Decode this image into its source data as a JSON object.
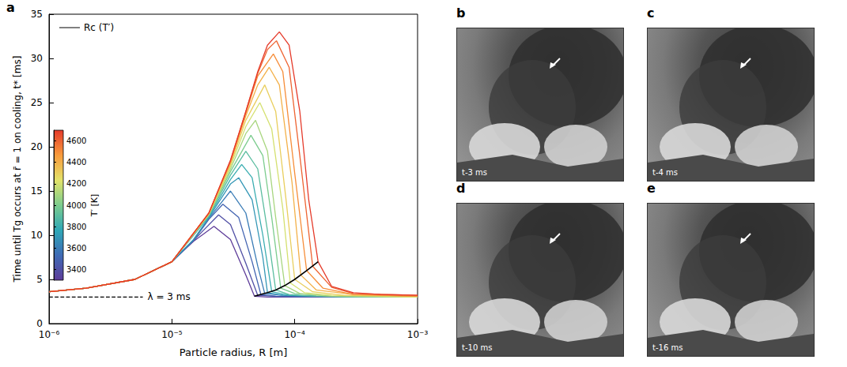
{
  "chart_data": {
    "type": "line",
    "panel": "a",
    "x_label": "Particle radius, R [m]",
    "y_label": "Time until Tg occurs at r̄ = 1 on cooling, t* [ms]",
    "log": "x",
    "xlim": [
      1e-06,
      0.001
    ],
    "xticks": [
      {
        "value": 1e-06,
        "label": "10⁻⁶"
      },
      {
        "value": 1e-05,
        "label": "10⁻⁵"
      },
      {
        "value": 0.0001,
        "label": "10⁻⁴"
      },
      {
        "value": 0.001,
        "label": "10⁻³"
      }
    ],
    "ylim": [
      0,
      35
    ],
    "yticks": [
      0,
      5,
      10,
      15,
      20,
      25,
      30,
      35
    ],
    "grid": false,
    "legend": "upper left",
    "colorbar": {
      "label": "T′ [K]",
      "range": [
        3300,
        4700
      ],
      "ticks": [
        3400,
        3600,
        3800,
        4000,
        4200,
        4400,
        4600
      ],
      "colors": [
        "#5e3c99",
        "#3f6bb5",
        "#2fa8b7",
        "#7ccc8e",
        "#e3e36a",
        "#f99b3c",
        "#e53a2a"
      ]
    },
    "series": [
      {
        "T": 3300,
        "x": [
          1e-06,
          2e-06,
          5e-06,
          1e-05,
          1.5e-05,
          2.2e-05,
          3e-05,
          4e-05,
          4.7e-05,
          6e-05,
          0.0001,
          0.0003,
          0.001
        ],
        "values": [
          3.6,
          4.0,
          5.0,
          7.0,
          9.3,
          11.0,
          9.5,
          5.5,
          3.1,
          3.0,
          3.0,
          3.0,
          3.0
        ]
      },
      {
        "T": 3400,
        "x": [
          1e-06,
          2e-06,
          5e-06,
          1e-05,
          1.5e-05,
          2.4e-05,
          3e-05,
          4e-05,
          5e-05,
          7e-05,
          0.0001,
          0.0003,
          0.001
        ],
        "values": [
          3.6,
          4.0,
          5.0,
          7.0,
          9.4,
          12.3,
          11.2,
          6.8,
          3.2,
          3.1,
          3.0,
          3.0,
          3.0
        ]
      },
      {
        "T": 3500,
        "x": [
          1e-06,
          2e-06,
          5e-06,
          1e-05,
          1.5e-05,
          2e-05,
          2.6e-05,
          3.5e-05,
          4.5e-05,
          5.3e-05,
          7e-05,
          0.0001,
          0.0003,
          0.001
        ],
        "values": [
          3.6,
          4.0,
          5.0,
          7.0,
          9.4,
          11.8,
          13.5,
          12.0,
          7.0,
          3.3,
          3.1,
          3.1,
          3.0,
          3.0
        ]
      },
      {
        "T": 3600,
        "x": [
          1e-06,
          2e-06,
          5e-06,
          1e-05,
          1.5e-05,
          2e-05,
          3e-05,
          4e-05,
          5e-05,
          5.7e-05,
          8e-05,
          0.00015,
          0.001
        ],
        "values": [
          3.6,
          4.0,
          5.0,
          7.0,
          9.5,
          11.9,
          15.0,
          12.5,
          6.5,
          3.4,
          3.2,
          3.1,
          3.0
        ]
      },
      {
        "T": 3700,
        "x": [
          1e-06,
          2e-06,
          5e-06,
          1e-05,
          1.5e-05,
          2e-05,
          3e-05,
          3.5e-05,
          4.5e-05,
          5.5e-05,
          6e-05,
          8e-05,
          0.00015,
          0.001
        ],
        "values": [
          3.6,
          4.0,
          5.0,
          7.0,
          9.5,
          12.0,
          15.8,
          16.5,
          14.0,
          7.5,
          3.5,
          3.2,
          3.1,
          3.0
        ]
      },
      {
        "T": 3800,
        "x": [
          1e-06,
          2e-06,
          5e-06,
          1e-05,
          2e-05,
          3e-05,
          3.7e-05,
          4.5e-05,
          5.5e-05,
          6.5e-05,
          9e-05,
          0.00015,
          0.001
        ],
        "values": [
          3.6,
          4.0,
          5.0,
          7.0,
          12.1,
          16.3,
          18.0,
          16.5,
          10.0,
          3.6,
          3.2,
          3.1,
          3.0
        ]
      },
      {
        "T": 3900,
        "x": [
          1e-06,
          2e-06,
          5e-06,
          1e-05,
          2e-05,
          3e-05,
          4e-05,
          5e-05,
          6e-05,
          7e-05,
          9e-05,
          0.00015,
          0.001
        ],
        "values": [
          3.6,
          4.0,
          5.0,
          7.0,
          12.2,
          16.8,
          19.5,
          17.5,
          10.5,
          3.8,
          3.3,
          3.1,
          3.0
        ]
      },
      {
        "T": 4000,
        "x": [
          1e-06,
          2e-06,
          5e-06,
          1e-05,
          2e-05,
          3e-05,
          4.4e-05,
          5.5e-05,
          6.5e-05,
          7.7e-05,
          0.0001,
          0.0002,
          0.001
        ],
        "values": [
          3.6,
          4.0,
          5.0,
          7.0,
          12.3,
          17.2,
          21.3,
          19.0,
          12.0,
          4.0,
          3.4,
          3.1,
          3.0
        ]
      },
      {
        "T": 4100,
        "x": [
          1e-06,
          2e-06,
          5e-06,
          1e-05,
          2e-05,
          3e-05,
          4e-05,
          4.8e-05,
          6e-05,
          7e-05,
          8.3e-05,
          0.00011,
          0.0002,
          0.001
        ],
        "values": [
          3.6,
          4.0,
          5.0,
          7.0,
          12.3,
          17.5,
          21.5,
          23.0,
          19.5,
          12.0,
          4.3,
          3.4,
          3.1,
          3.0
        ]
      },
      {
        "T": 4200,
        "x": [
          1e-06,
          2e-06,
          5e-06,
          1e-05,
          2e-05,
          3e-05,
          4e-05,
          5.2e-05,
          6.5e-05,
          8e-05,
          9.2e-05,
          0.00012,
          0.0002,
          0.001
        ],
        "values": [
          3.6,
          4.0,
          5.0,
          7.0,
          12.4,
          17.8,
          22.3,
          25.0,
          22.0,
          13.0,
          4.6,
          3.5,
          3.2,
          3.0
        ]
      },
      {
        "T": 4300,
        "x": [
          1e-06,
          2e-06,
          5e-06,
          1e-05,
          2e-05,
          3e-05,
          4e-05,
          5.7e-05,
          7e-05,
          8.5e-05,
          0.0001,
          0.00014,
          0.00025,
          0.001
        ],
        "values": [
          3.6,
          4.0,
          5.0,
          7.0,
          12.4,
          18.0,
          23.0,
          27.0,
          24.0,
          14.0,
          5.0,
          3.6,
          3.2,
          3.1
        ]
      },
      {
        "T": 4400,
        "x": [
          1e-06,
          2e-06,
          5e-06,
          1e-05,
          2e-05,
          3e-05,
          4e-05,
          5e-05,
          6.2e-05,
          7.5e-05,
          9.5e-05,
          0.000112,
          0.00015,
          0.0003,
          0.001
        ],
        "values": [
          3.6,
          4.0,
          5.0,
          7.0,
          12.5,
          18.2,
          23.5,
          27.0,
          29.0,
          27.0,
          16.0,
          5.5,
          3.8,
          3.3,
          3.1
        ]
      },
      {
        "T": 4500,
        "x": [
          1e-06,
          2e-06,
          5e-06,
          1e-05,
          2e-05,
          3e-05,
          4e-05,
          5e-05,
          6.7e-05,
          8e-05,
          0.0001,
          0.000125,
          0.00017,
          0.0003,
          0.001
        ],
        "values": [
          3.6,
          4.0,
          5.0,
          7.0,
          12.5,
          18.3,
          23.8,
          28.0,
          30.5,
          28.5,
          17.0,
          6.0,
          4.0,
          3.3,
          3.1
        ]
      },
      {
        "T": 4600,
        "x": [
          1e-06,
          2e-06,
          5e-06,
          1e-05,
          2e-05,
          3e-05,
          4e-05,
          5e-05,
          6e-05,
          7.1e-05,
          9e-05,
          0.00011,
          0.00014,
          0.0002,
          0.0003,
          0.001
        ],
        "values": [
          3.6,
          4.0,
          5.0,
          7.0,
          12.5,
          18.4,
          24.0,
          28.3,
          31.0,
          32.0,
          29.0,
          19.0,
          6.5,
          4.1,
          3.4,
          3.2
        ]
      },
      {
        "T": 4700,
        "x": [
          1e-06,
          2e-06,
          5e-06,
          1e-05,
          2e-05,
          3e-05,
          4e-05,
          5e-05,
          6e-05,
          7.5e-05,
          9e-05,
          0.00011,
          0.00013,
          0.000155,
          0.0002,
          0.0003,
          0.0005,
          0.001
        ],
        "values": [
          3.6,
          4.0,
          5.0,
          7.0,
          12.5,
          18.5,
          24.0,
          28.5,
          31.5,
          33.0,
          31.5,
          24.0,
          14.0,
          7.0,
          4.2,
          3.5,
          3.3,
          3.2
        ]
      },
      {
        "name": "Rc (T′)",
        "color": "#000000",
        "line_style": "solid",
        "x": [
          4.7e-05,
          5.3e-05,
          6e-05,
          7e-05,
          8.3e-05,
          0.0001,
          0.000125,
          0.000155
        ],
        "values": [
          3.1,
          3.3,
          3.5,
          3.8,
          4.3,
          5.0,
          6.0,
          7.0
        ]
      }
    ],
    "annotations": [
      {
        "text": "λ = 3 ms",
        "x": [
          1e-06,
          5.8e-06
        ],
        "values": [
          3,
          3
        ],
        "line_style": "dashed",
        "color": "#000000"
      }
    ]
  },
  "photos": [
    {
      "panel": "b",
      "caption": "t-3 ms"
    },
    {
      "panel": "c",
      "caption": "t-4 ms"
    },
    {
      "panel": "d",
      "caption": "t-10 ms"
    },
    {
      "panel": "e",
      "caption": "t-16 ms"
    }
  ]
}
